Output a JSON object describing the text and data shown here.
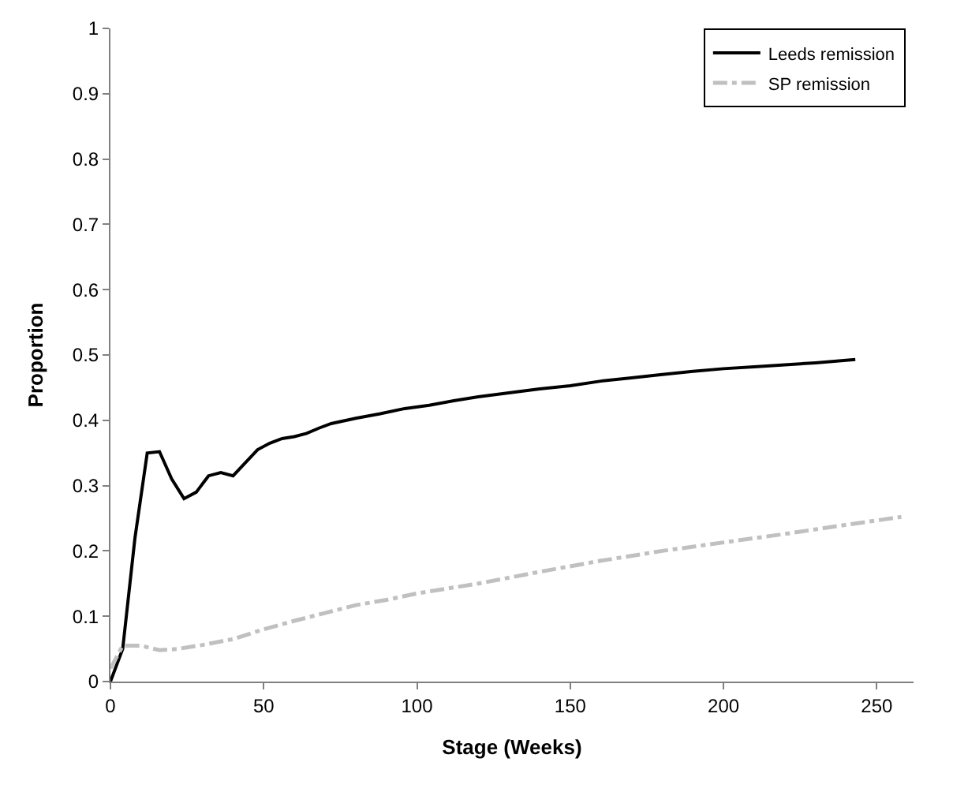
{
  "chart_data": {
    "type": "line",
    "xlabel": "Stage (Weeks)",
    "ylabel": "Proportion",
    "xlim": [
      0,
      262
    ],
    "xticks": [
      0,
      50,
      100,
      150,
      200,
      250
    ],
    "ylim": [
      0,
      1
    ],
    "yticks": [
      0,
      0.1,
      0.2,
      0.3,
      0.4,
      0.5,
      0.6,
      0.7,
      0.8,
      0.9,
      1
    ],
    "legend": "top right",
    "marker": "none",
    "series": [
      {
        "name": "Leeds remission",
        "color": "#000000",
        "line_style": "solid",
        "x": [
          0,
          4,
          8,
          12,
          16,
          20,
          24,
          28,
          32,
          36,
          40,
          44,
          48,
          52,
          56,
          60,
          64,
          68,
          72,
          80,
          88,
          96,
          104,
          112,
          120,
          130,
          140,
          150,
          160,
          170,
          180,
          190,
          200,
          210,
          220,
          230,
          243
        ],
        "values": [
          0,
          0.05,
          0.22,
          0.35,
          0.352,
          0.31,
          0.28,
          0.29,
          0.315,
          0.32,
          0.315,
          0.335,
          0.355,
          0.365,
          0.372,
          0.375,
          0.38,
          0.388,
          0.395,
          0.403,
          0.41,
          0.418,
          0.423,
          0.43,
          0.436,
          0.442,
          0.448,
          0.453,
          0.46,
          0.465,
          0.47,
          0.475,
          0.479,
          0.482,
          0.485,
          0.488,
          0.493
        ]
      },
      {
        "name": "SP remission",
        "color": "#c0c0c0",
        "line_style": "dashdot",
        "x": [
          0,
          4,
          10,
          16,
          22,
          30,
          40,
          50,
          60,
          70,
          80,
          90,
          100,
          120,
          140,
          160,
          180,
          200,
          220,
          240,
          258
        ],
        "values": [
          0.02,
          0.055,
          0.055,
          0.048,
          0.05,
          0.056,
          0.065,
          0.08,
          0.093,
          0.105,
          0.117,
          0.125,
          0.135,
          0.15,
          0.168,
          0.185,
          0.2,
          0.213,
          0.226,
          0.24,
          0.252
        ]
      }
    ]
  }
}
